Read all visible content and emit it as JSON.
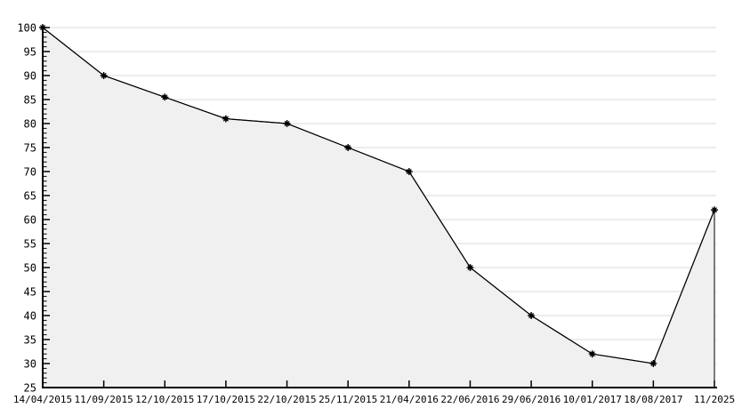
{
  "chart_data": {
    "type": "area",
    "title": "",
    "xlabel": "",
    "ylabel": "",
    "x_labels": [
      "14/04/2015",
      "11/09/2015",
      "12/10/2015",
      "17/10/2015",
      "22/10/2015",
      "25/11/2015",
      "21/04/2016",
      "22/06/2016",
      "29/06/2016",
      "10/01/2017",
      "18/08/2017",
      "11/2025"
    ],
    "values": [
      100,
      90,
      85.5,
      81,
      80,
      75,
      70,
      50,
      40,
      32,
      30,
      62
    ],
    "ylim": [
      25,
      100
    ],
    "y_tick_step": 5,
    "y_minor_tick_step": 1,
    "y_tick_labels": [
      "25",
      "30",
      "35",
      "40",
      "45",
      "50",
      "55",
      "60",
      "65",
      "70",
      "75",
      "80",
      "85",
      "90",
      "95",
      "100"
    ],
    "grid": "horizontal",
    "legend": "none",
    "marker": "star",
    "colors": {
      "line": "#000000",
      "marker": "#000000",
      "fill": "#f0f0f0",
      "gridline": "#d8d8d8",
      "axis": "#000000",
      "text": "#000000",
      "background": "#ffffff"
    }
  }
}
